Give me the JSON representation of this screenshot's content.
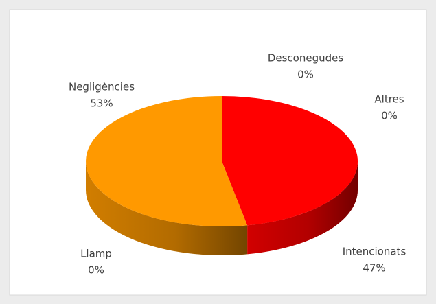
{
  "chart_data": {
    "type": "pie",
    "categories": [
      "Desconegudes",
      "Altres",
      "Intencionats",
      "Llamp",
      "Negligències"
    ],
    "values": [
      0,
      0,
      47,
      0,
      53
    ],
    "value_labels": [
      "0%",
      "0%",
      "47%",
      "0%",
      "53%"
    ],
    "colors": [
      "#7f7f7f",
      "#ffc000",
      "#ff0000",
      "#5b9bd5",
      "#ff9900"
    ]
  }
}
